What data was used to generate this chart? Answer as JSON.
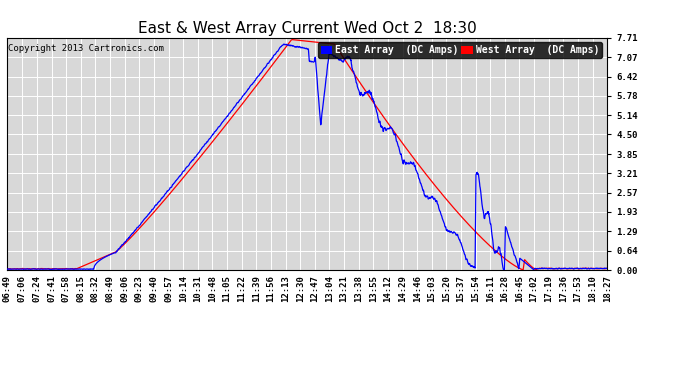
{
  "title": "East & West Array Current Wed Oct 2  18:30",
  "copyright": "Copyright 2013 Cartronics.com",
  "ylabel_east": "East Array  (DC Amps)",
  "ylabel_west": "West Array  (DC Amps)",
  "yticks": [
    0.0,
    0.64,
    1.29,
    1.93,
    2.57,
    3.21,
    3.85,
    4.5,
    5.14,
    5.78,
    6.42,
    7.07,
    7.71
  ],
  "ylim": [
    0.0,
    7.71
  ],
  "east_color": "#0000ff",
  "west_color": "#ff0000",
  "bg_color": "#ffffff",
  "plot_bg_color": "#d8d8d8",
  "grid_color": "#ffffff",
  "title_fontsize": 11,
  "legend_fontsize": 7,
  "tick_fontsize": 6.5,
  "time_labels": [
    "06:49",
    "07:06",
    "07:24",
    "07:41",
    "07:58",
    "08:15",
    "08:32",
    "08:49",
    "09:06",
    "09:23",
    "09:40",
    "09:57",
    "10:14",
    "10:31",
    "10:48",
    "11:05",
    "11:22",
    "11:39",
    "11:56",
    "12:13",
    "12:30",
    "12:47",
    "13:04",
    "13:21",
    "13:38",
    "13:55",
    "14:12",
    "14:29",
    "14:46",
    "15:03",
    "15:20",
    "15:37",
    "15:54",
    "16:11",
    "16:28",
    "16:45",
    "17:02",
    "17:19",
    "17:36",
    "17:53",
    "18:10",
    "18:27"
  ]
}
